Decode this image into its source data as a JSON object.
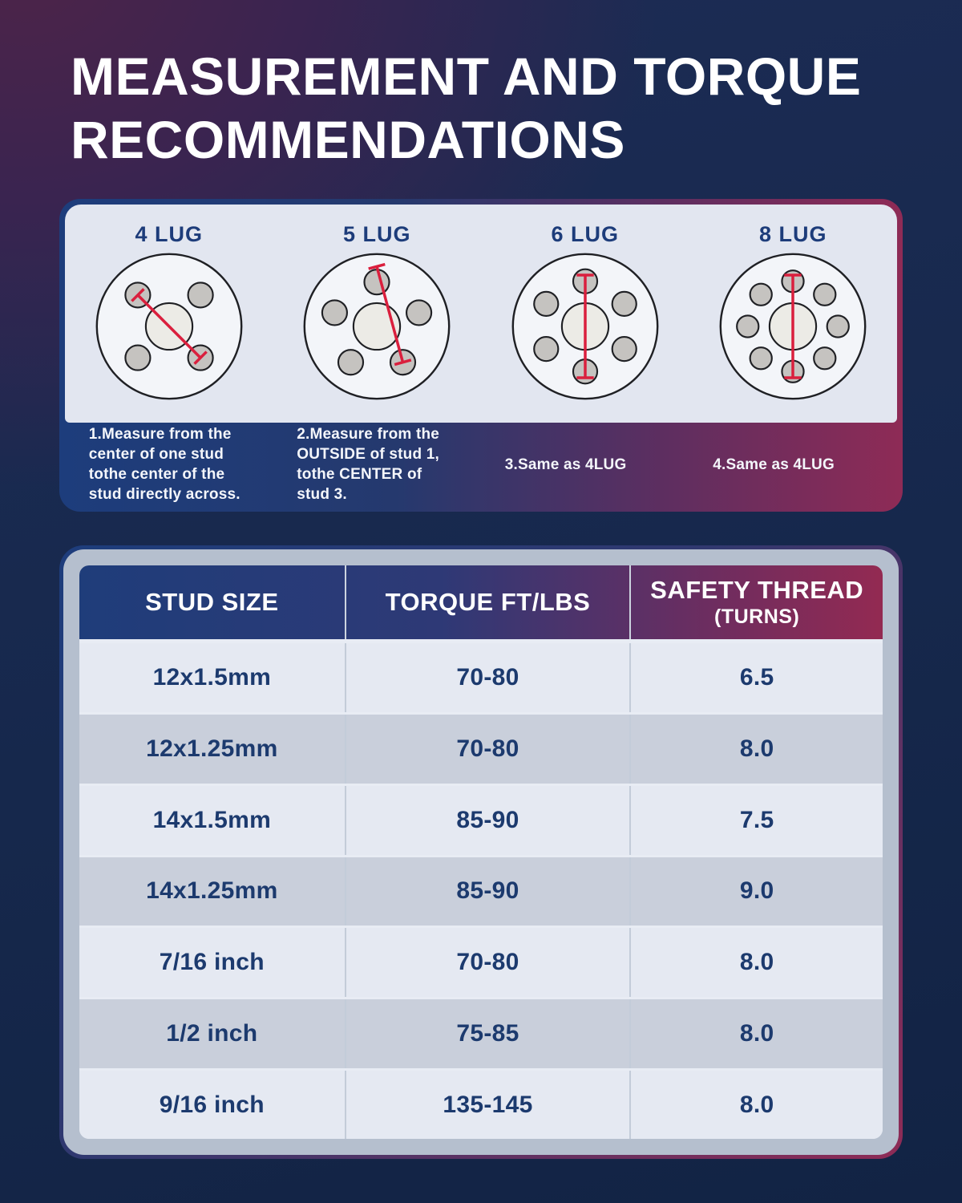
{
  "title": {
    "line1": "MEASUREMENT AND TORQUE",
    "line2": "RECOMMENDATIONS"
  },
  "lug_panel": {
    "diagrams": [
      {
        "label": "4 LUG",
        "lugs": 4,
        "note": "1.Measure from the center of one stud tothe center of the stud directly across."
      },
      {
        "label": "5 LUG",
        "lugs": 5,
        "note": "2.Measure from the OUTSIDE of stud 1, tothe CENTER of stud 3."
      },
      {
        "label": "6 LUG",
        "lugs": 6,
        "note": "3.Same as 4LUG"
      },
      {
        "label": "8 LUG",
        "lugs": 8,
        "note": "4.Same as 4LUG"
      }
    ]
  },
  "table": {
    "headers": [
      {
        "line1": "STUD SIZE",
        "line2": ""
      },
      {
        "line1": "TORQUE FT/LBS",
        "line2": ""
      },
      {
        "line1": "SAFETY THREAD",
        "line2": "(TURNS)"
      }
    ],
    "rows": [
      [
        "12x1.5mm",
        "70-80",
        "6.5"
      ],
      [
        "12x1.25mm",
        "70-80",
        "8.0"
      ],
      [
        "14x1.5mm",
        "85-90",
        "7.5"
      ],
      [
        "14x1.25mm",
        "85-90",
        "9.0"
      ],
      [
        "7/16 inch",
        "70-80",
        "8.0"
      ],
      [
        "1/2 inch",
        "75-85",
        "8.0"
      ],
      [
        "9/16 inch",
        "135-145",
        "8.0"
      ]
    ]
  },
  "colors": {
    "bg_purple": "#4d2449",
    "navy": "#1d3d7c",
    "maroon": "#8e2b56",
    "panel_light": "#e2e6f0",
    "lug_label": "#1d3c7a",
    "line_red": "#da1f3d",
    "wheel_face": "#f3f5f9",
    "hub_face": "#ecebe6",
    "stud_gray": "#c5c3c0",
    "outline": "#1f2024",
    "table_card": "#b5bfce",
    "header_left": "#1f3d7a",
    "header_right": "#932a52",
    "row_light": "#e5e9f2",
    "row_dark": "#c9cfdb",
    "cell_text": "#1c3a6e"
  }
}
